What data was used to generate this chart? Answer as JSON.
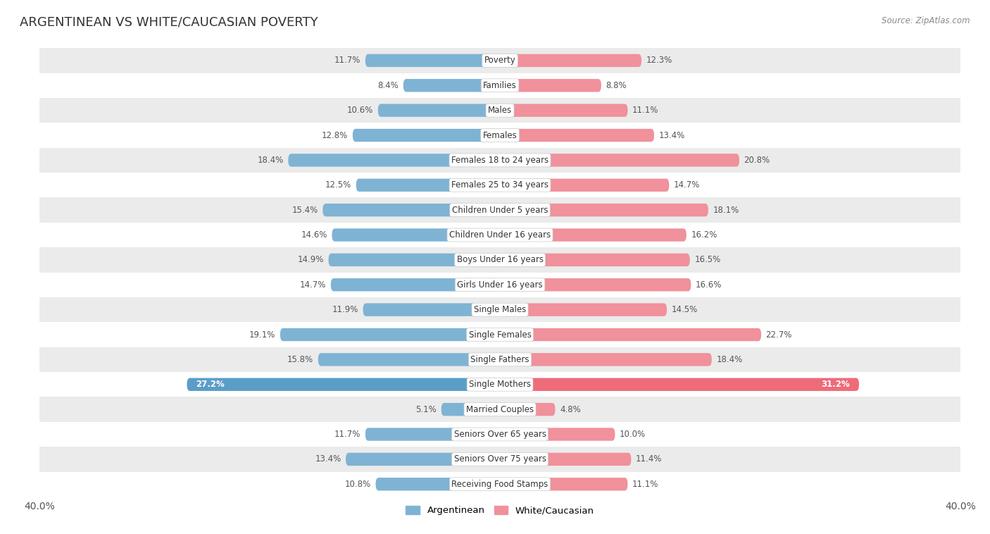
{
  "title": "ARGENTINEAN VS WHITE/CAUCASIAN POVERTY",
  "source": "Source: ZipAtlas.com",
  "categories": [
    "Poverty",
    "Families",
    "Males",
    "Females",
    "Females 18 to 24 years",
    "Females 25 to 34 years",
    "Children Under 5 years",
    "Children Under 16 years",
    "Boys Under 16 years",
    "Girls Under 16 years",
    "Single Males",
    "Single Females",
    "Single Fathers",
    "Single Mothers",
    "Married Couples",
    "Seniors Over 65 years",
    "Seniors Over 75 years",
    "Receiving Food Stamps"
  ],
  "argentinean": [
    11.7,
    8.4,
    10.6,
    12.8,
    18.4,
    12.5,
    15.4,
    14.6,
    14.9,
    14.7,
    11.9,
    19.1,
    15.8,
    27.2,
    5.1,
    11.7,
    13.4,
    10.8
  ],
  "white_caucasian": [
    12.3,
    8.8,
    11.1,
    13.4,
    20.8,
    14.7,
    18.1,
    16.2,
    16.5,
    16.6,
    14.5,
    22.7,
    18.4,
    31.2,
    4.8,
    10.0,
    11.4,
    11.1
  ],
  "color_argentinean": "#7FB3D3",
  "color_white_caucasian": "#F0919B",
  "color_single_mothers_arg": "#5A9EC8",
  "color_single_mothers_white": "#EE6B7A",
  "background_row_light": "#EBEBEB",
  "background_row_white": "#FFFFFF",
  "xlim": 40.0,
  "bar_height": 0.52,
  "label_fontsize": 8.5,
  "title_fontsize": 13,
  "axis_label_fontsize": 10,
  "value_label_fontsize": 8.5,
  "legend_fontsize": 9.5
}
